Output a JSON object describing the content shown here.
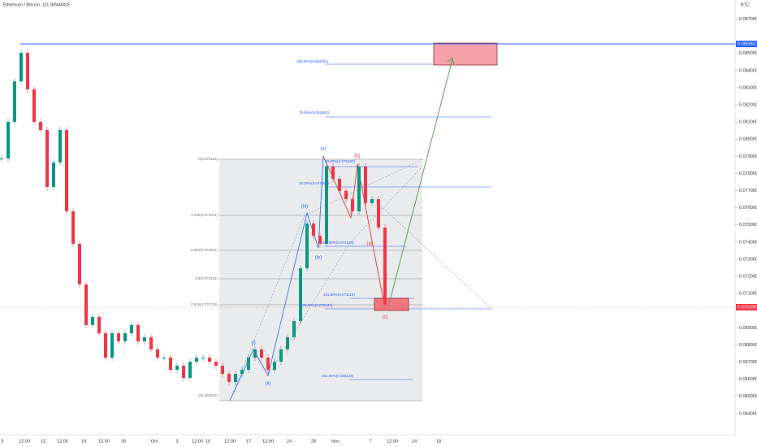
{
  "header": {
    "title": "Ethereum / Bitcoin, 1D, BINANCE",
    "currency": "BTC"
  },
  "candles": {
    "close": [
      0.07887,
      0.08101,
      0.08337,
      0.08503,
      0.0829,
      0.08101,
      0.08053,
      0.07721,
      0.07864,
      0.08053,
      0.07579,
      0.0739,
      0.07153,
      0.06916,
      0.06963,
      0.06868,
      0.06726,
      0.06868,
      0.06821,
      0.06868,
      0.06916,
      0.06821,
      0.06845,
      0.06774,
      0.06726,
      0.06726,
      0.06655,
      0.06679,
      0.06608,
      0.06702,
      0.06726,
      0.06726,
      0.06702,
      0.06679,
      0.06631,
      0.06584,
      0.06631,
      0.06655,
      0.06726,
      0.06774,
      0.06726,
      0.06655,
      0.06702,
      0.06774,
      0.06845,
      0.06939,
      0.07247,
      0.07508,
      0.07437,
      0.0739,
      0.0784,
      0.07769,
      0.07698,
      0.0765,
      0.07579,
      0.0784,
      0.07627,
      0.0765,
      0.07484,
      0.07034
    ]
  },
  "price_scale": {
    "ylim": [
      0.064,
      0.087
    ],
    "ticks": [
      {
        "value": 0.064,
        "label": "0.064000"
      },
      {
        "value": 0.065,
        "label": "0.065000"
      },
      {
        "value": 0.066,
        "label": "0.066000"
      },
      {
        "value": 0.067,
        "label": "0.067000"
      },
      {
        "value": 0.068,
        "label": "0.068000"
      },
      {
        "value": 0.069,
        "label": "0.069000"
      },
      {
        "value": 0.071,
        "label": "0.071000"
      },
      {
        "value": 0.072,
        "label": "0.072000"
      },
      {
        "value": 0.073,
        "label": "0.073000"
      },
      {
        "value": 0.074,
        "label": "0.074000"
      },
      {
        "value": 0.075,
        "label": "0.075000"
      },
      {
        "value": 0.076,
        "label": "0.076000"
      },
      {
        "value": 0.077,
        "label": "0.077000"
      },
      {
        "value": 0.078,
        "label": "0.078000"
      },
      {
        "value": 0.079,
        "label": "0.079000"
      },
      {
        "value": 0.08,
        "label": "0.080000"
      },
      {
        "value": 0.081,
        "label": "0.081000"
      },
      {
        "value": 0.082,
        "label": "0.082000"
      },
      {
        "value": 0.083,
        "label": "0.083000"
      },
      {
        "value": 0.084,
        "label": "0.084000"
      },
      {
        "value": 0.085,
        "label": "0.085000"
      },
      {
        "value": 0.087,
        "label": "0.087000"
      }
    ],
    "resistance": {
      "value": 0.085552,
      "label": "0.085552"
    },
    "last": {
      "value": 0.070199,
      "label": "0.070199"
    }
  },
  "time_axis": [
    "5",
    "12:00",
    "12",
    "12:00",
    "19",
    "12:00",
    "26",
    "Oct",
    "3",
    "12:00",
    "10",
    "12:00",
    "17",
    "12:00",
    "24",
    "28",
    "Nov",
    "7",
    "12:00",
    "14",
    "18"
  ],
  "fib_levels": [
    "0(0.079119)",
    "0.236(0.075911)",
    "0.382(0.073922)",
    "0.5(0.072314)",
    "0.618(0.070716)",
    "1(0.065507)"
  ],
  "extensions": [
    "100.00%(0.084451)",
    "78.60%(0.081962)",
    "38.20%(0.077559)",
    "50.00%(0.078160)",
    "100.00%(0.074154)",
    "161.80%(0.071118)",
    "100.00%(0.070441)",
    "261.80%(0.066128)"
  ],
  "waves": [
    "(i)",
    "(ii)",
    "(iii)",
    "(iv)",
    "(v)",
    "(a)",
    "(b)",
    "(c)"
  ]
}
